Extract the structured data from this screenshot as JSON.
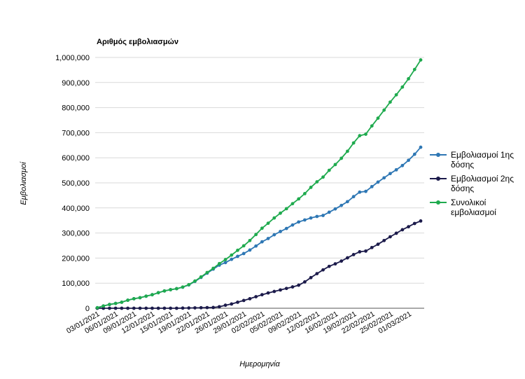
{
  "chart_data": {
    "type": "line",
    "title": "Αριθμός εμβολιασμών",
    "xlabel": "Ημερομηνία",
    "ylabel": "Εμβολιασμοί",
    "ylim": [
      0,
      1000000
    ],
    "yticks": [
      "0",
      "100,000",
      "200,000",
      "300,000",
      "400,000",
      "500,000",
      "600,000",
      "700,000",
      "800,000",
      "900,000",
      "1,000,000"
    ],
    "xtick_labels": [
      "03/01/2021",
      "06/01/2021",
      "09/01/2021",
      "12/01/2021",
      "15/01/2021",
      "19/01/2021",
      "22/01/2021",
      "26/01/2021",
      "29/01/2021",
      "02/02/2021",
      "05/02/2021",
      "09/02/2021",
      "12/02/2021",
      "16/02/2021",
      "19/02/2021",
      "22/02/2021",
      "25/02/2021",
      "01/03/2021"
    ],
    "grid": true,
    "legend_position": "right",
    "series": [
      {
        "name": "Εμβολιασμοί 1ης δόσης",
        "color": "#2e77b4",
        "values": [
          2000,
          9000,
          15000,
          19000,
          24000,
          32000,
          38000,
          42000,
          48000,
          54000,
          62000,
          69000,
          74000,
          78000,
          84000,
          93000,
          107000,
          123000,
          140000,
          156000,
          172000,
          182000,
          195000,
          207000,
          218000,
          232000,
          248000,
          265000,
          278000,
          293000,
          306000,
          318000,
          332000,
          344000,
          352000,
          360000,
          366000,
          370000,
          383000,
          396000,
          410000,
          425000,
          445000,
          463000,
          466000,
          485000,
          503000,
          520000,
          537000,
          552000,
          569000,
          590000,
          614000,
          642000
        ]
      },
      {
        "name": "Εμβολιασμοί 2ης δόσης",
        "color": "#1c1b4b",
        "values": [
          0,
          0,
          0,
          0,
          0,
          0,
          0,
          0,
          0,
          0,
          0,
          0,
          0,
          0,
          500,
          1000,
          1500,
          2000,
          2500,
          3000,
          6000,
          12000,
          17000,
          24000,
          31000,
          38000,
          46000,
          54000,
          61000,
          67000,
          73000,
          79000,
          85000,
          92000,
          105000,
          122000,
          138000,
          153000,
          167000,
          177000,
          188000,
          201000,
          214000,
          225000,
          228000,
          242000,
          255000,
          270000,
          285000,
          299000,
          313000,
          325000,
          338000,
          348000
        ]
      },
      {
        "name": "Συνολικοί εμβολιασμοί",
        "color": "#1faa4e",
        "values": [
          2000,
          9000,
          15000,
          19000,
          24000,
          32000,
          38000,
          42000,
          48000,
          54000,
          62000,
          69000,
          74000,
          78000,
          84500,
          94000,
          108500,
          125000,
          142500,
          159000,
          178000,
          194000,
          212000,
          231000,
          249000,
          270000,
          294000,
          319000,
          339000,
          360000,
          379000,
          397000,
          417000,
          436000,
          457000,
          482000,
          504000,
          523000,
          550000,
          573000,
          598000,
          626000,
          659000,
          688000,
          694000,
          727000,
          758000,
          790000,
          822000,
          851000,
          882000,
          915000,
          952000,
          990000
        ]
      }
    ]
  }
}
